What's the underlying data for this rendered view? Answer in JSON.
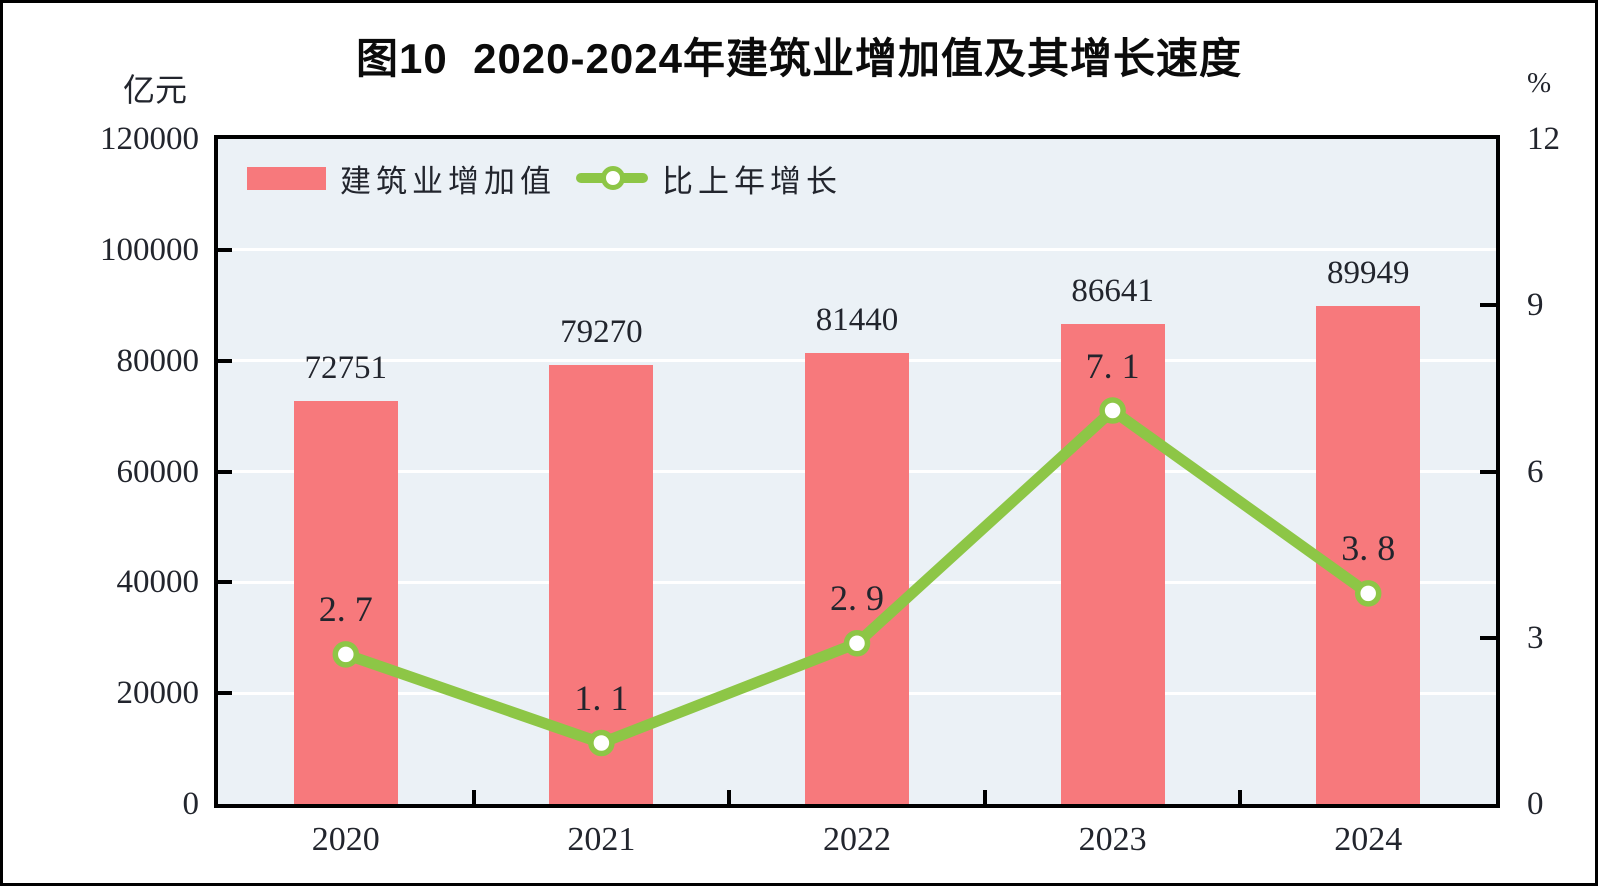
{
  "figure": {
    "title": "图10  2020-2024年建筑业增加值及其增长速度",
    "left_axis_unit": "亿元",
    "right_axis_unit": "%"
  },
  "legend": {
    "bar_label": "建筑业增加值",
    "line_label": "比上年增长"
  },
  "colors": {
    "bar": "#f7797c",
    "line": "#8dc646",
    "plot_background": "#ebf1f6",
    "gridline": "#ffffff",
    "axis": "#000000",
    "text": "#22252d"
  },
  "chart_data": {
    "type": "combo",
    "title": "图10  2020-2024年建筑业增加值及其增长速度",
    "categories": [
      "2020",
      "2021",
      "2022",
      "2023",
      "2024"
    ],
    "series": [
      {
        "name": "建筑业增加值",
        "type": "bar",
        "axis": "left",
        "unit": "亿元",
        "values": [
          72751,
          79270,
          81440,
          86641,
          89949
        ],
        "labels": [
          "72751",
          "79270",
          "81440",
          "86641",
          "89949"
        ],
        "color": "#f7797c"
      },
      {
        "name": "比上年增长",
        "type": "line",
        "axis": "right",
        "unit": "%",
        "values": [
          2.7,
          1.1,
          2.9,
          7.1,
          3.8
        ],
        "labels": [
          "2. 7",
          "1. 1",
          "2. 9",
          "7. 1",
          "3. 8"
        ],
        "color": "#8dc646"
      }
    ],
    "left_axis": {
      "label": "亿元",
      "min": 0,
      "max": 120000,
      "ticks": [
        120000,
        100000,
        80000,
        60000,
        40000,
        20000,
        0
      ],
      "tick_labels": [
        "120000",
        "100000",
        "80000",
        "60000",
        "40000",
        "20000",
        "0"
      ]
    },
    "right_axis": {
      "label": "%",
      "min": 0,
      "max": 12,
      "ticks": [
        12,
        9,
        6,
        3,
        0
      ],
      "tick_labels": [
        "12",
        "9",
        "6",
        "3",
        "0"
      ]
    },
    "grid": {
      "horizontal_left_interval": 20000,
      "color": "#ffffff"
    },
    "legend_position": "top-left-inside-plot"
  }
}
